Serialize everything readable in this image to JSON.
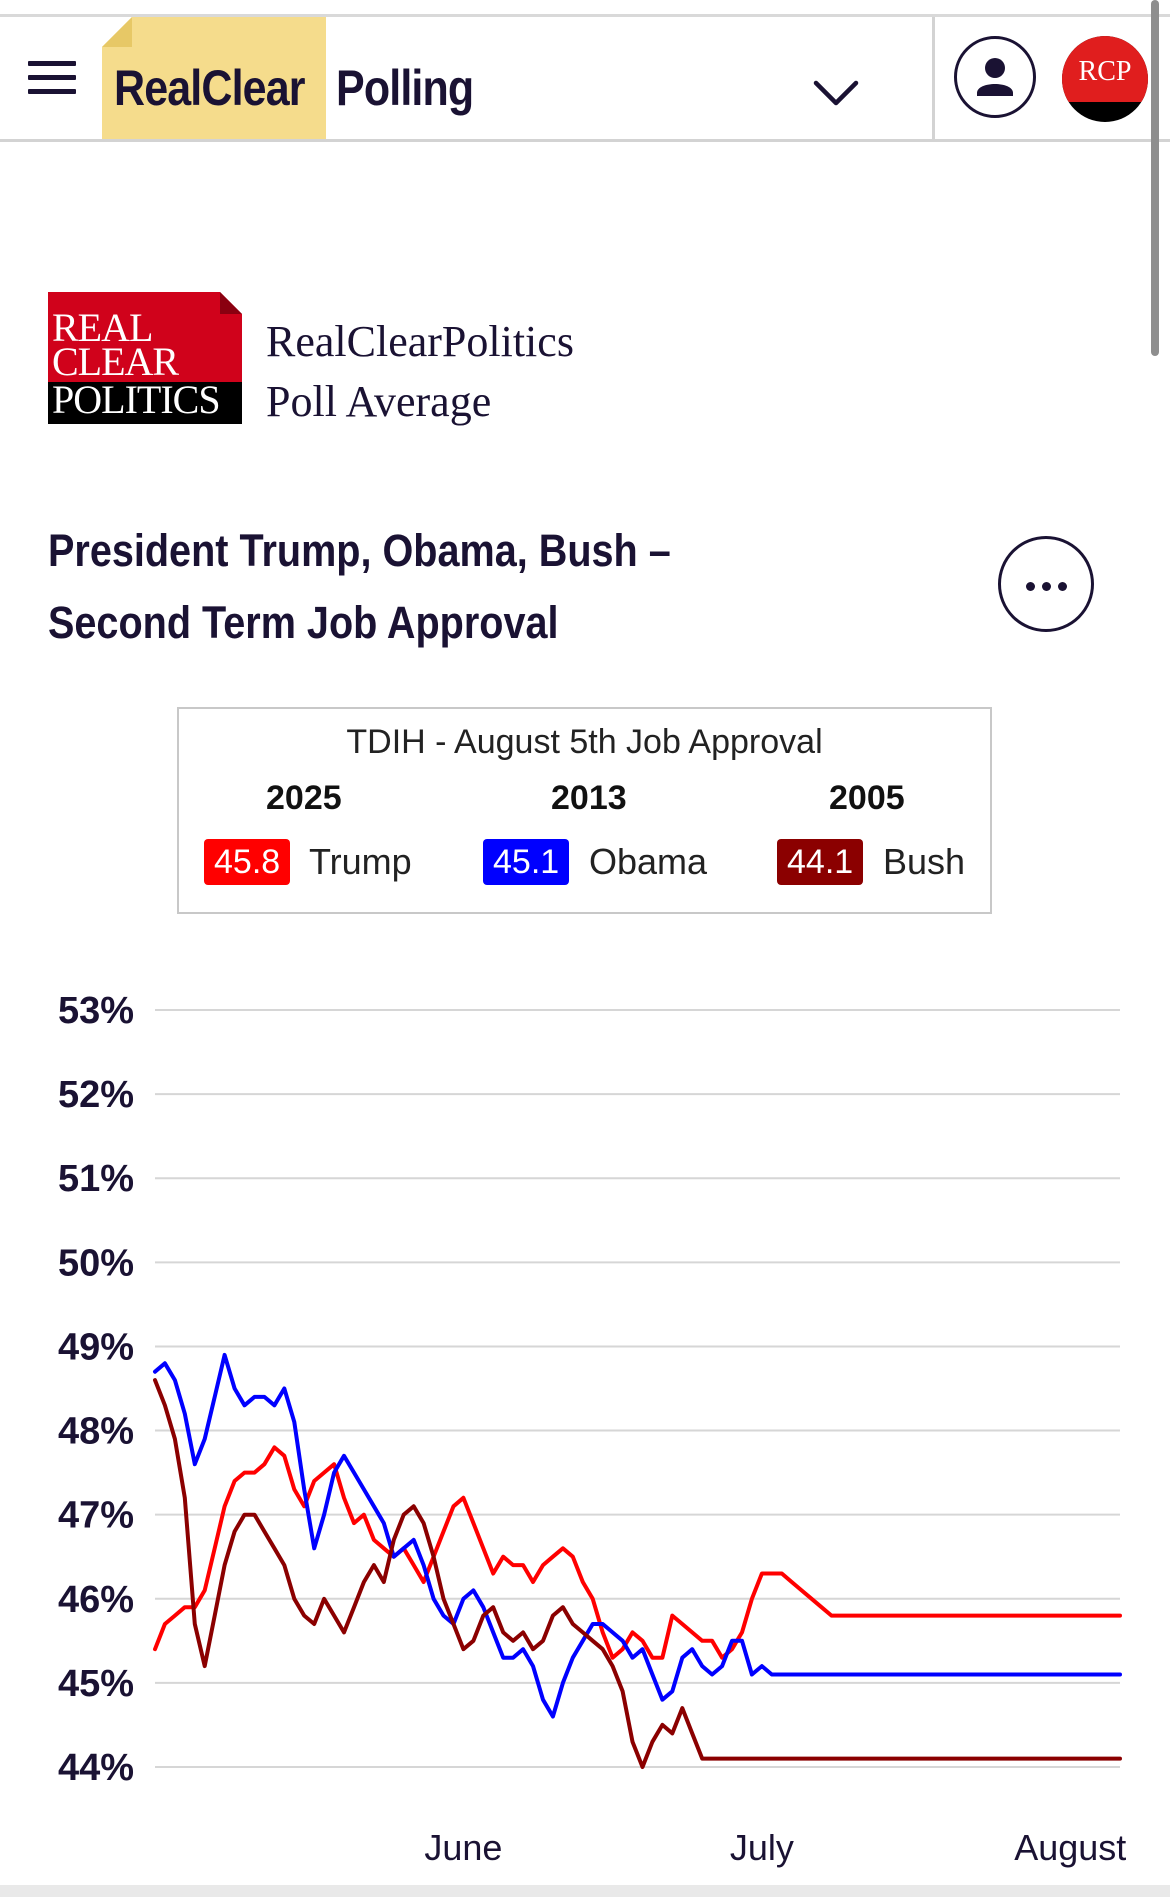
{
  "header": {
    "brand_part1": "RealClear",
    "brand_part2": "Polling",
    "badge_text": "RCP"
  },
  "source": {
    "logo_line1": "REAL",
    "logo_line2": "CLEAR",
    "logo_line3": "POLITICS",
    "name": "RealClearPolitics",
    "subtitle": "Poll Average"
  },
  "title_line1": "President Trump, Obama, Bush –",
  "title_line2": "Second Term Job Approval",
  "tdih": {
    "title": "TDIH - August 5th Job Approval",
    "entries": [
      {
        "year": "2025",
        "value": "45.8",
        "name": "Trump",
        "color": "#ff0000"
      },
      {
        "year": "2013",
        "value": "45.1",
        "name": "Obama",
        "color": "#0000ff"
      },
      {
        "year": "2005",
        "value": "44.1",
        "name": "Bush",
        "color": "#8b0000"
      }
    ]
  },
  "chart_data": {
    "type": "line",
    "title": "President Trump, Obama, Bush – Second Term Job Approval",
    "x_tick_labels": [
      "June",
      "July",
      "August"
    ],
    "x_tick_days": [
      31,
      61,
      92
    ],
    "xlim": [
      0,
      97
    ],
    "ylim": [
      44,
      53
    ],
    "y_ticks": [
      44,
      45,
      46,
      47,
      48,
      49,
      50,
      51,
      52,
      53
    ],
    "y_tick_labels": [
      "44%",
      "45%",
      "46%",
      "47%",
      "48%",
      "49%",
      "50%",
      "51%",
      "52%",
      "53%"
    ],
    "grid": true,
    "x_description": "days since May 1",
    "series": [
      {
        "name": "Trump",
        "color": "#ff0000",
        "x": [
          0,
          1,
          2,
          3,
          4,
          5,
          6,
          7,
          8,
          9,
          10,
          11,
          12,
          13,
          14,
          15,
          16,
          17,
          18,
          19,
          20,
          21,
          22,
          23,
          24,
          25,
          26,
          27,
          28,
          29,
          30,
          31,
          32,
          33,
          34,
          35,
          36,
          37,
          38,
          39,
          40,
          41,
          42,
          43,
          44,
          45,
          46,
          47,
          48,
          49,
          50,
          51,
          52,
          53,
          54,
          55,
          56,
          57,
          58,
          59,
          60,
          61,
          62,
          63,
          64,
          65,
          66,
          67,
          68,
          69,
          70,
          71,
          72,
          73,
          74,
          75,
          76,
          77,
          78,
          79,
          80,
          81,
          82,
          83,
          84,
          85,
          86,
          87,
          88,
          89,
          90,
          91,
          92,
          93,
          94,
          95,
          96,
          97
        ],
        "y": [
          45.4,
          45.7,
          45.8,
          45.9,
          45.9,
          46.1,
          46.6,
          47.1,
          47.4,
          47.5,
          47.5,
          47.6,
          47.8,
          47.7,
          47.3,
          47.1,
          47.4,
          47.5,
          47.6,
          47.2,
          46.9,
          47.0,
          46.7,
          46.6,
          46.5,
          46.6,
          46.4,
          46.2,
          46.5,
          46.8,
          47.1,
          47.2,
          46.9,
          46.6,
          46.3,
          46.5,
          46.4,
          46.4,
          46.2,
          46.4,
          46.5,
          46.6,
          46.5,
          46.2,
          46.0,
          45.6,
          45.3,
          45.4,
          45.6,
          45.5,
          45.3,
          45.3,
          45.8,
          45.7,
          45.6,
          45.5,
          45.5,
          45.3,
          45.4,
          45.6,
          46.0,
          46.3,
          46.3,
          46.3,
          46.2,
          46.1,
          46.0,
          45.9,
          45.8,
          45.8,
          45.8,
          45.8,
          45.8,
          45.8,
          45.8,
          45.8,
          45.8,
          45.8,
          45.8,
          45.8,
          45.8,
          45.8,
          45.8,
          45.8,
          45.8,
          45.8,
          45.8,
          45.8,
          45.8,
          45.8,
          45.8,
          45.8,
          45.8,
          45.8,
          45.8,
          45.8,
          45.8,
          45.8
        ]
      },
      {
        "name": "Obama",
        "color": "#0000ff",
        "x": [
          0,
          1,
          2,
          3,
          4,
          5,
          6,
          7,
          8,
          9,
          10,
          11,
          12,
          13,
          14,
          15,
          16,
          17,
          18,
          19,
          20,
          21,
          22,
          23,
          24,
          25,
          26,
          27,
          28,
          29,
          30,
          31,
          32,
          33,
          34,
          35,
          36,
          37,
          38,
          39,
          40,
          41,
          42,
          43,
          44,
          45,
          46,
          47,
          48,
          49,
          50,
          51,
          52,
          53,
          54,
          55,
          56,
          57,
          58,
          59,
          60,
          61,
          62,
          63,
          64,
          65,
          66,
          67,
          68,
          69,
          70,
          71,
          72,
          73,
          74,
          75,
          76,
          77,
          78,
          79,
          80,
          81,
          82,
          83,
          84,
          85,
          86,
          87,
          88,
          89,
          90,
          91,
          92,
          93,
          94,
          95,
          96,
          97
        ],
        "y": [
          48.7,
          48.8,
          48.6,
          48.2,
          47.6,
          47.9,
          48.4,
          48.9,
          48.5,
          48.3,
          48.4,
          48.4,
          48.3,
          48.5,
          48.1,
          47.3,
          46.6,
          47.0,
          47.5,
          47.7,
          47.5,
          47.3,
          47.1,
          46.9,
          46.5,
          46.6,
          46.7,
          46.4,
          46.0,
          45.8,
          45.7,
          46.0,
          46.1,
          45.9,
          45.6,
          45.3,
          45.3,
          45.4,
          45.2,
          44.8,
          44.6,
          45.0,
          45.3,
          45.5,
          45.7,
          45.7,
          45.6,
          45.5,
          45.3,
          45.4,
          45.1,
          44.8,
          44.9,
          45.3,
          45.4,
          45.2,
          45.1,
          45.2,
          45.5,
          45.5,
          45.1,
          45.2,
          45.1,
          45.1,
          45.1,
          45.1,
          45.1,
          45.1,
          45.1,
          45.1,
          45.1,
          45.1,
          45.1,
          45.1,
          45.1,
          45.1,
          45.1,
          45.1,
          45.1,
          45.1,
          45.1,
          45.1,
          45.1,
          45.1,
          45.1,
          45.1,
          45.1,
          45.1,
          45.1,
          45.1,
          45.1,
          45.1,
          45.1,
          45.1,
          45.1,
          45.1,
          45.1,
          45.1
        ]
      },
      {
        "name": "Bush",
        "color": "#8b0000",
        "x": [
          0,
          1,
          2,
          3,
          4,
          5,
          6,
          7,
          8,
          9,
          10,
          11,
          12,
          13,
          14,
          15,
          16,
          17,
          18,
          19,
          20,
          21,
          22,
          23,
          24,
          25,
          26,
          27,
          28,
          29,
          30,
          31,
          32,
          33,
          34,
          35,
          36,
          37,
          38,
          39,
          40,
          41,
          42,
          43,
          44,
          45,
          46,
          47,
          48,
          49,
          50,
          51,
          52,
          53,
          54,
          55,
          56,
          57,
          58,
          59,
          60,
          61,
          62,
          63,
          64,
          65,
          66,
          67,
          68,
          69,
          70,
          71,
          72,
          73,
          74,
          75,
          76,
          77,
          78,
          79,
          80,
          81,
          82,
          83,
          84,
          85,
          86,
          87,
          88,
          89,
          90,
          91,
          92,
          93,
          94,
          95,
          96,
          97
        ],
        "y": [
          48.6,
          48.3,
          47.9,
          47.2,
          45.7,
          45.2,
          45.8,
          46.4,
          46.8,
          47.0,
          47.0,
          46.8,
          46.6,
          46.4,
          46.0,
          45.8,
          45.7,
          46.0,
          45.8,
          45.6,
          45.9,
          46.2,
          46.4,
          46.2,
          46.7,
          47.0,
          47.1,
          46.9,
          46.5,
          46.0,
          45.7,
          45.4,
          45.5,
          45.8,
          45.9,
          45.6,
          45.5,
          45.6,
          45.4,
          45.5,
          45.8,
          45.9,
          45.7,
          45.6,
          45.5,
          45.4,
          45.2,
          44.9,
          44.3,
          44.0,
          44.3,
          44.5,
          44.4,
          44.7,
          44.4,
          44.1,
          44.1,
          44.1,
          44.1,
          44.1,
          44.1,
          44.1,
          44.1,
          44.1,
          44.1,
          44.1,
          44.1,
          44.1,
          44.1,
          44.1,
          44.1,
          44.1,
          44.1,
          44.1,
          44.1,
          44.1,
          44.1,
          44.1,
          44.1,
          44.1,
          44.1,
          44.1,
          44.1,
          44.1,
          44.1,
          44.1,
          44.1,
          44.1,
          44.1,
          44.1,
          44.1,
          44.1,
          44.1,
          44.1,
          44.1,
          44.1,
          44.1,
          44.1
        ]
      }
    ]
  }
}
